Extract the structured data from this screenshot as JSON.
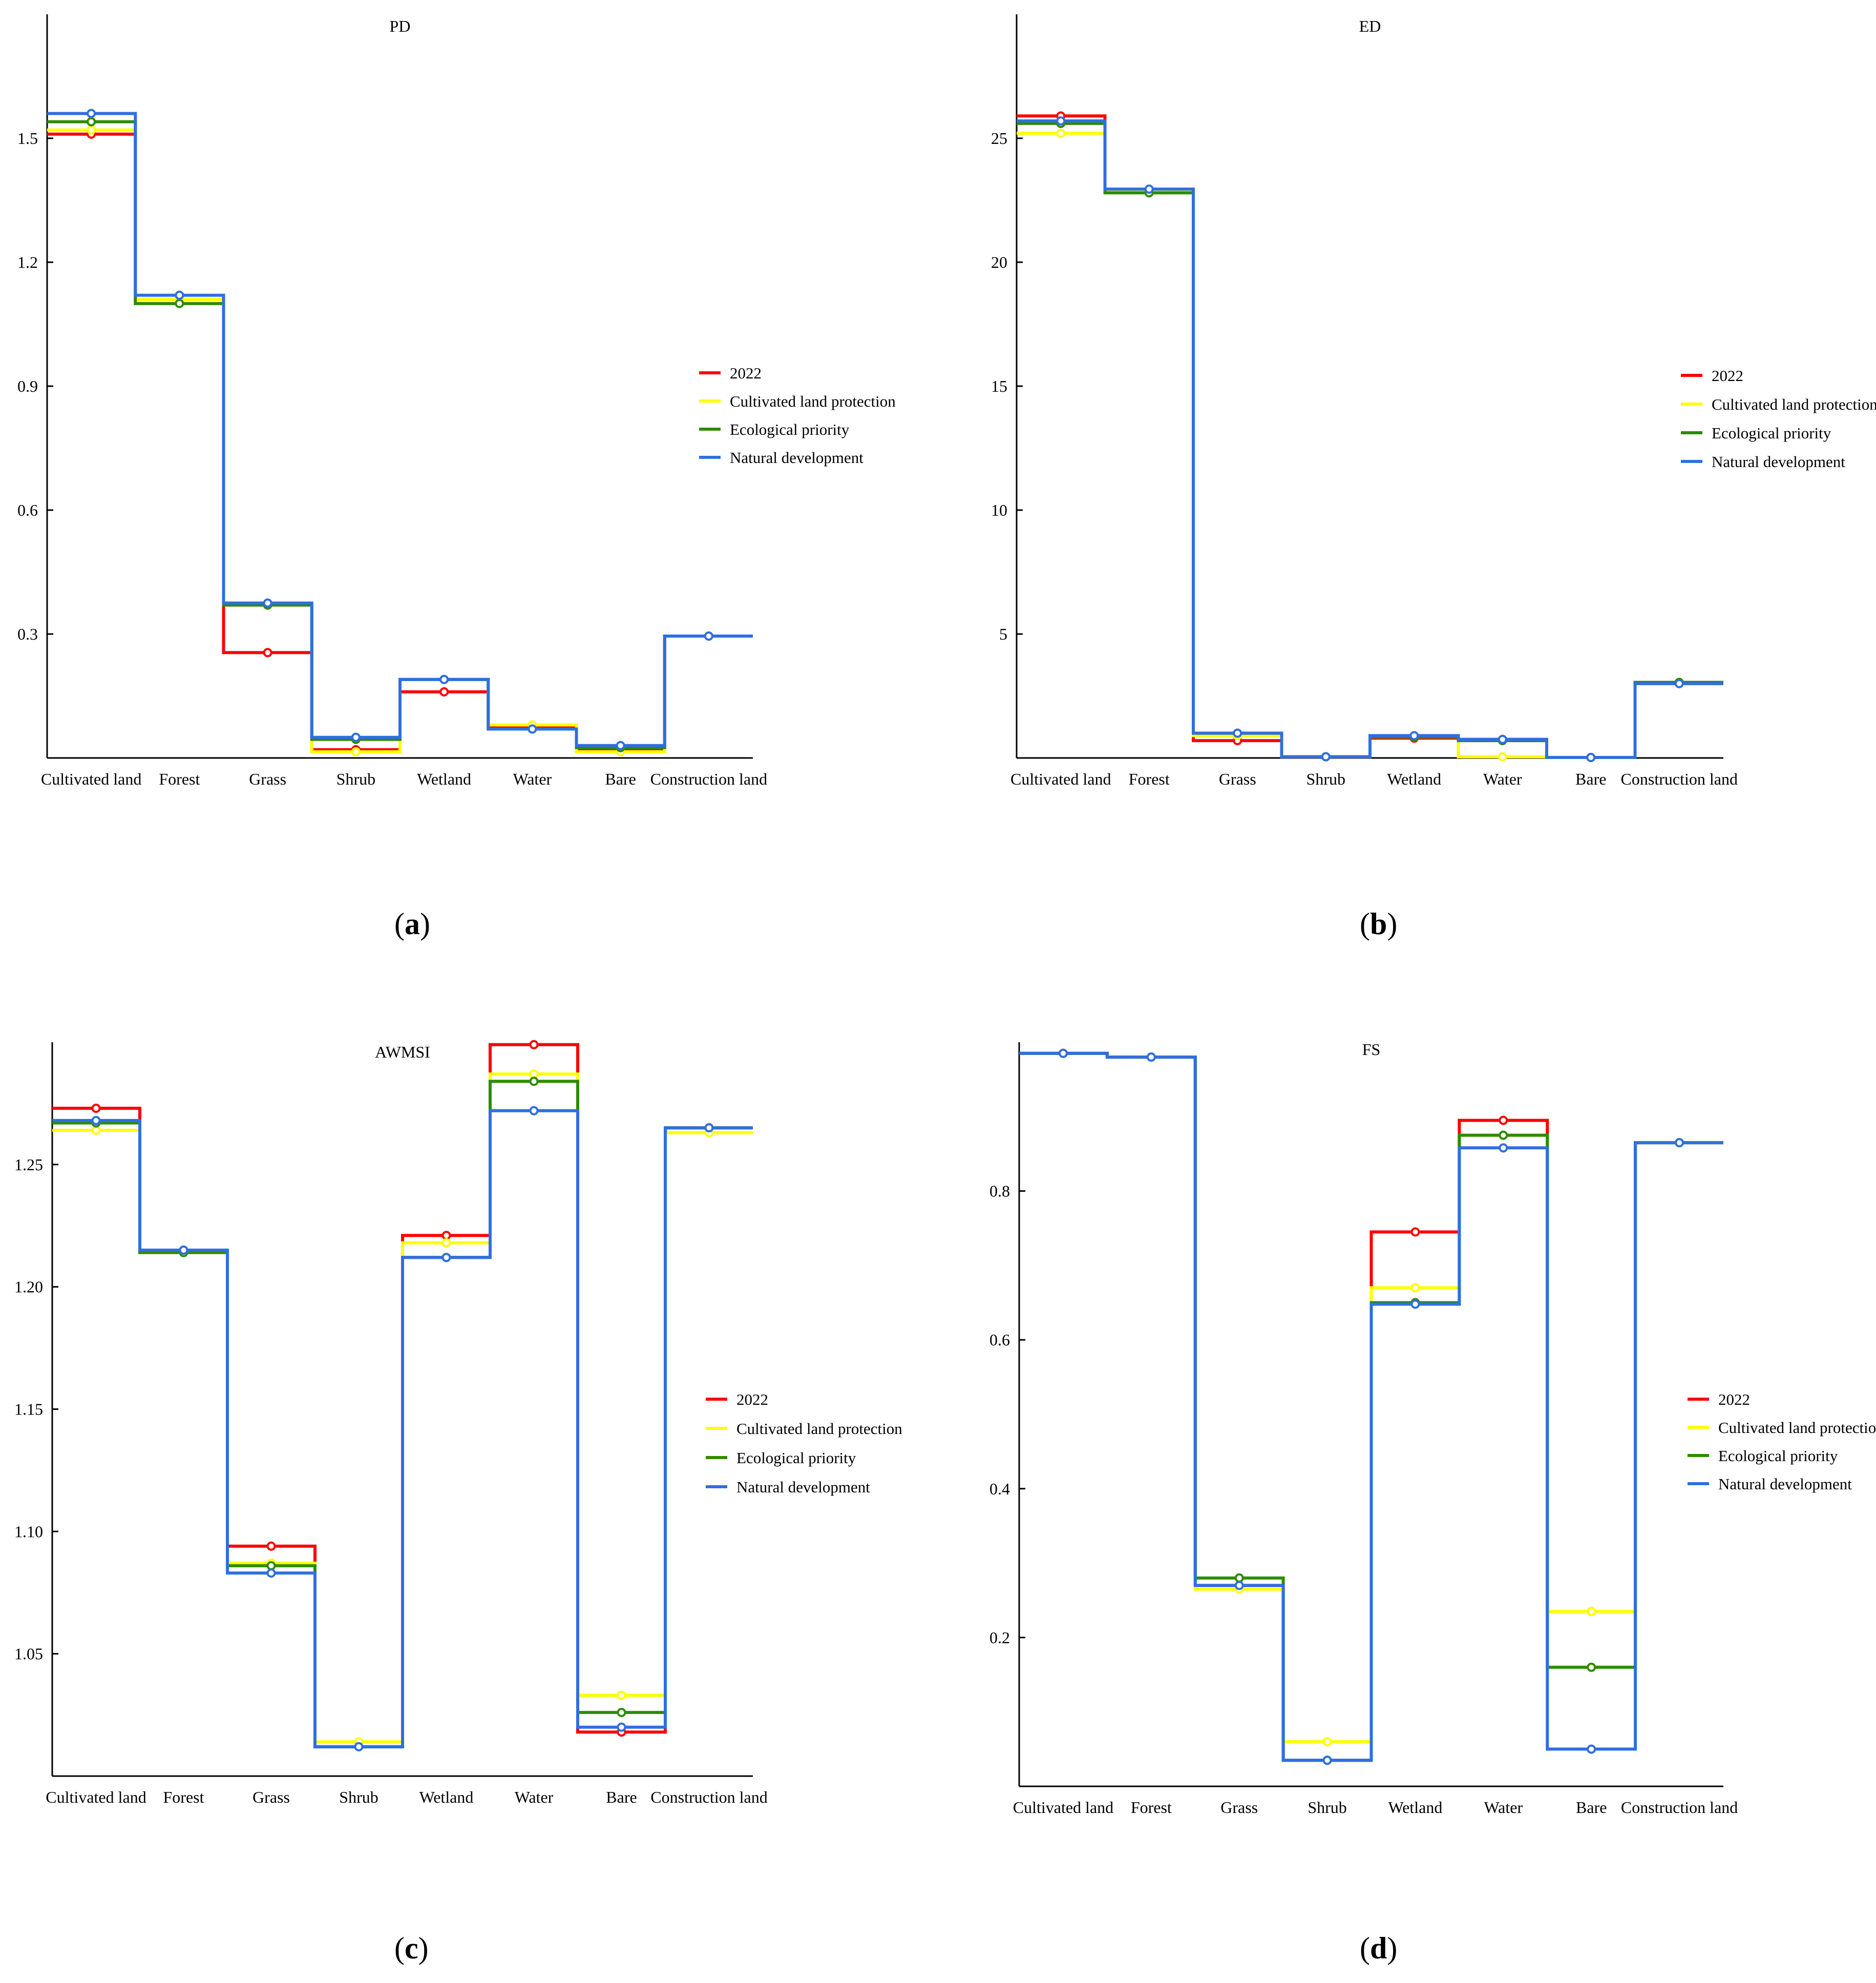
{
  "categories": [
    "Cultivated land",
    "Forest",
    "Grass",
    "Shrub",
    "Wetland",
    "Water",
    "Bare",
    "Construction land"
  ],
  "series_names": [
    "2022",
    "Cultivated land protection",
    "Ecological priority",
    "Natural development"
  ],
  "series_colors": [
    "#ff0000",
    "#ffff00",
    "#2e8b00",
    "#2f6fe0"
  ],
  "panels": [
    {
      "label_paren_open": "(",
      "label_letter": "a",
      "label_paren_close": ")"
    },
    {
      "label_paren_open": "(",
      "label_letter": "b",
      "label_paren_close": ")"
    },
    {
      "label_paren_open": "(",
      "label_letter": "c",
      "label_paren_close": ")"
    },
    {
      "label_paren_open": "(",
      "label_letter": "d",
      "label_paren_close": ")"
    }
  ],
  "chart_data": [
    {
      "type": "line",
      "step": true,
      "title": "PD",
      "categories": [
        "Cultivated land",
        "Forest",
        "Grass",
        "Shrub",
        "Wetland",
        "Water",
        "Bare",
        "Construction land"
      ],
      "yticks": [
        0.3,
        0.6,
        0.9,
        1.2,
        1.5
      ],
      "ytick_labels": [
        "0.3",
        "0.6",
        "0.9",
        "1.2",
        "1.5"
      ],
      "ylim": [
        0,
        1.8
      ],
      "legend_position": "center-right",
      "series": [
        {
          "name": "2022",
          "values": [
            1.51,
            1.11,
            0.255,
            0.02,
            0.16,
            0.075,
            0.02,
            0.295
          ]
        },
        {
          "name": "Cultivated land protection",
          "values": [
            1.52,
            1.11,
            0.37,
            0.015,
            0.19,
            0.08,
            0.015,
            0.295
          ]
        },
        {
          "name": "Ecological priority",
          "values": [
            1.54,
            1.1,
            0.37,
            0.045,
            0.19,
            0.07,
            0.025,
            0.295
          ]
        },
        {
          "name": "Natural development",
          "values": [
            1.56,
            1.12,
            0.375,
            0.05,
            0.19,
            0.07,
            0.03,
            0.295
          ]
        }
      ]
    },
    {
      "type": "line",
      "step": true,
      "title": "ED",
      "categories": [
        "Cultivated land",
        "Forest",
        "Grass",
        "Shrub",
        "Wetland",
        "Water",
        "Bare",
        "Construction land"
      ],
      "yticks": [
        5,
        10,
        15,
        20,
        25
      ],
      "ytick_labels": [
        "5",
        "10",
        "15",
        "20",
        "25"
      ],
      "ylim": [
        0,
        30
      ],
      "legend_position": "center-right",
      "series": [
        {
          "name": "2022",
          "values": [
            25.9,
            22.9,
            0.7,
            0.05,
            0.8,
            0.75,
            0.02,
            3.0
          ]
        },
        {
          "name": "Cultivated land protection",
          "values": [
            25.2,
            22.9,
            0.9,
            0.05,
            0.85,
            0.05,
            0.02,
            3.0
          ]
        },
        {
          "name": "Ecological priority",
          "values": [
            25.6,
            22.8,
            1.0,
            0.05,
            0.85,
            0.7,
            0.02,
            3.05
          ]
        },
        {
          "name": "Natural development",
          "values": [
            25.7,
            22.95,
            1.0,
            0.05,
            0.9,
            0.75,
            0.02,
            3.0
          ]
        }
      ]
    },
    {
      "type": "line",
      "step": true,
      "title": "AWMSI",
      "categories": [
        "Cultivated land",
        "Forest",
        "Grass",
        "Shrub",
        "Wetland",
        "Water",
        "Bare",
        "Construction land"
      ],
      "yticks": [
        1.05,
        1.1,
        1.15,
        1.2,
        1.25
      ],
      "ytick_labels": [
        "1.05",
        "1.10",
        "1.15",
        "1.20",
        "1.25"
      ],
      "ylim": [
        1.0,
        1.3
      ],
      "legend_position": "center-right",
      "series": [
        {
          "name": "2022",
          "values": [
            1.273,
            1.215,
            1.094,
            1.012,
            1.221,
            1.299,
            1.018,
            1.265
          ]
        },
        {
          "name": "Cultivated land protection",
          "values": [
            1.264,
            1.215,
            1.087,
            1.014,
            1.218,
            1.287,
            1.033,
            1.263
          ]
        },
        {
          "name": "Ecological priority",
          "values": [
            1.267,
            1.214,
            1.086,
            1.012,
            1.212,
            1.284,
            1.026,
            1.265
          ]
        },
        {
          "name": "Natural development",
          "values": [
            1.268,
            1.215,
            1.083,
            1.012,
            1.212,
            1.272,
            1.02,
            1.265
          ]
        }
      ]
    },
    {
      "type": "line",
      "step": true,
      "title": "FS",
      "categories": [
        "Cultivated land",
        "Forest",
        "Grass",
        "Shrub",
        "Wetland",
        "Water",
        "Bare",
        "Construction land"
      ],
      "yticks": [
        0.2,
        0.4,
        0.6,
        0.8
      ],
      "ytick_labels": [
        "0.2",
        "0.4",
        "0.6",
        "0.8"
      ],
      "ylim": [
        0,
        1.0
      ],
      "legend_position": "center-right",
      "series": [
        {
          "name": "2022",
          "values": [
            0.985,
            0.98,
            0.27,
            0.035,
            0.745,
            0.895,
            0.235,
            0.865
          ]
        },
        {
          "name": "Cultivated land protection",
          "values": [
            0.985,
            0.98,
            0.265,
            0.06,
            0.67,
            0.875,
            0.235,
            0.865
          ]
        },
        {
          "name": "Ecological priority",
          "values": [
            0.985,
            0.98,
            0.28,
            0.035,
            0.65,
            0.875,
            0.16,
            0.865
          ]
        },
        {
          "name": "Natural development",
          "values": [
            0.985,
            0.98,
            0.27,
            0.035,
            0.648,
            0.858,
            0.05,
            0.865
          ]
        }
      ]
    }
  ]
}
